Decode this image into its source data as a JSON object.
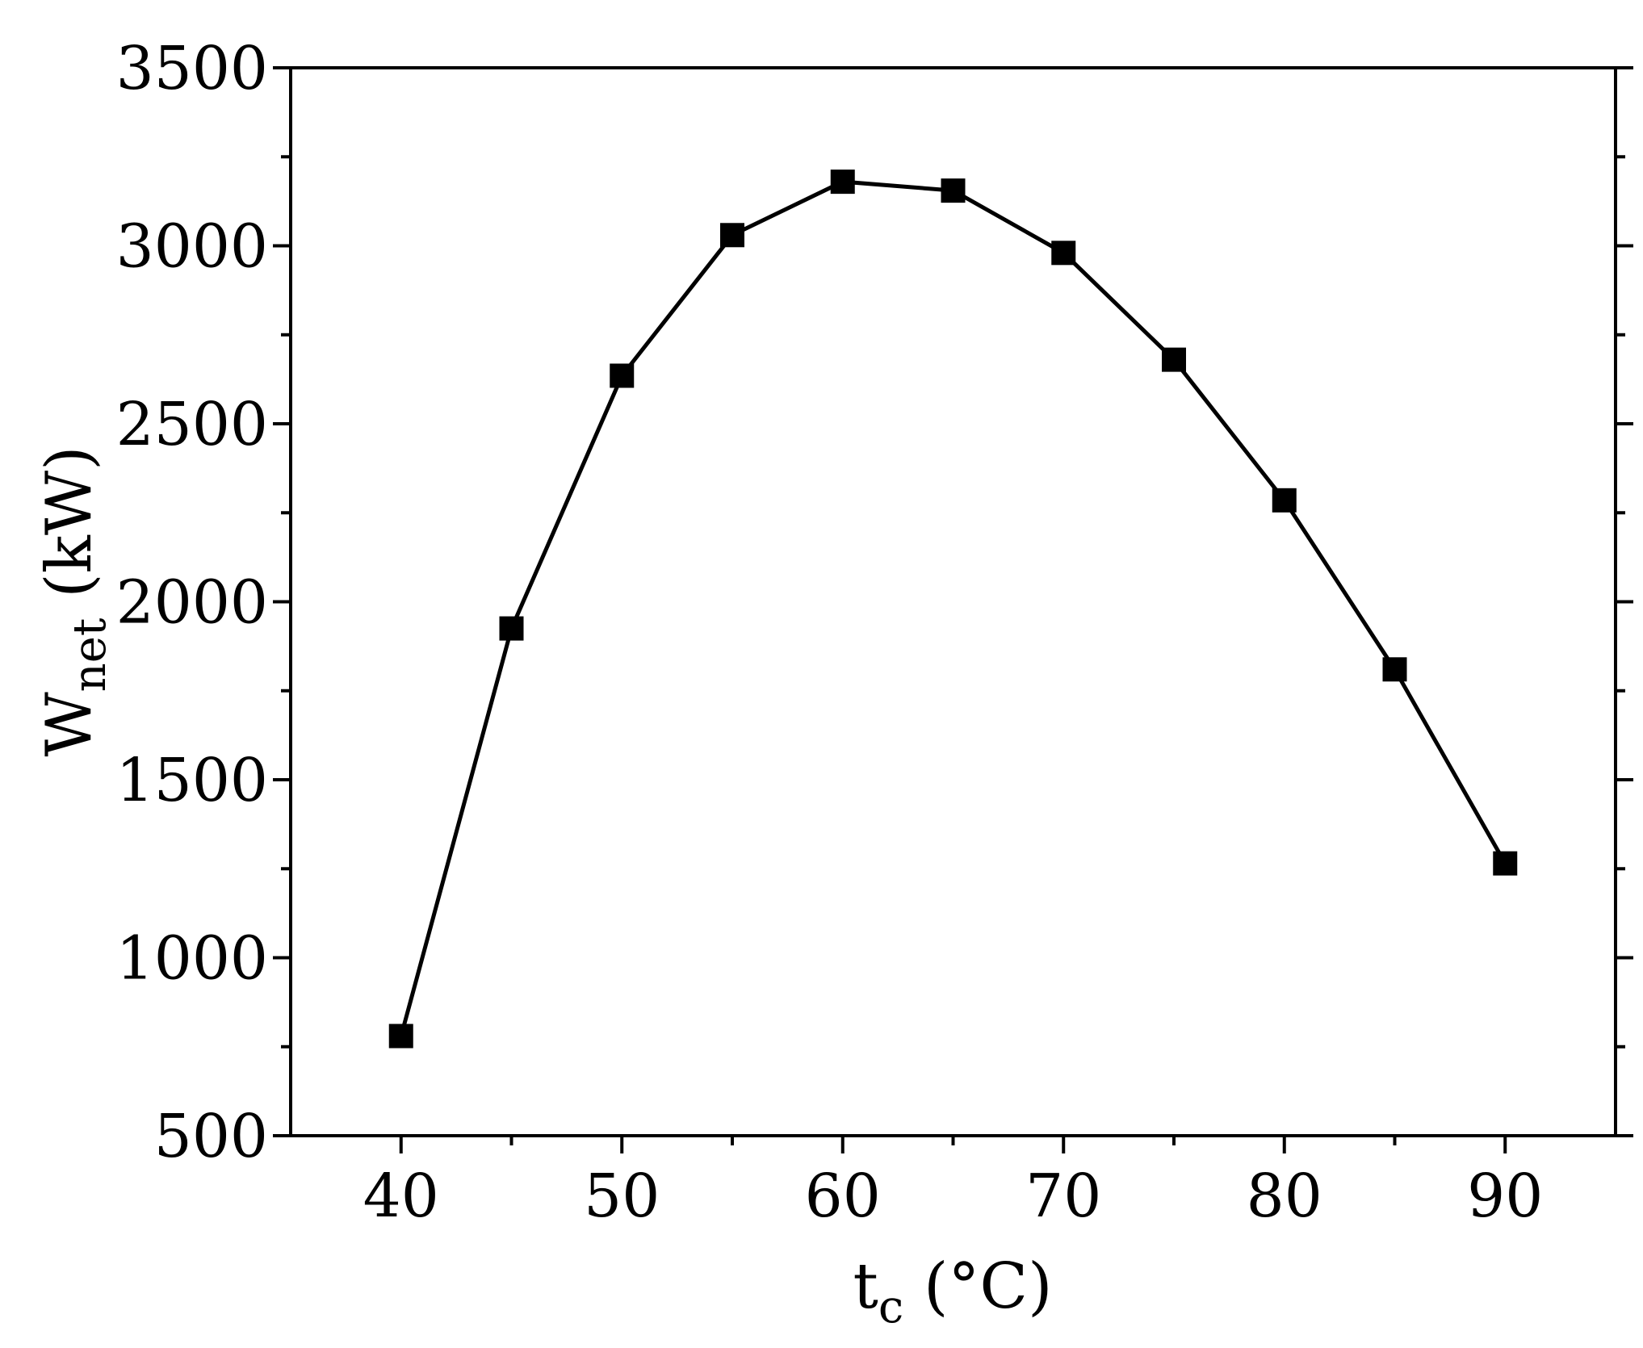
{
  "chart_data": {
    "type": "line",
    "xlabel": {
      "main": "t",
      "sub": "c",
      "unit": " (°C)"
    },
    "ylabel": {
      "main": "W",
      "sub": "net",
      "unit": " (kW)"
    },
    "xlim": [
      35,
      95
    ],
    "ylim": [
      500,
      3500
    ],
    "xticks": [
      40,
      50,
      60,
      70,
      80,
      90
    ],
    "xminor": [
      45,
      55,
      65,
      75,
      85
    ],
    "yticks": [
      500,
      1000,
      1500,
      2000,
      2500,
      3000,
      3500
    ],
    "yminor": [
      750,
      1250,
      1750,
      2250,
      2750,
      3250
    ],
    "grid": false,
    "marker": "square",
    "color": "#000000",
    "series": [
      {
        "x": [
          40,
          45,
          50,
          55,
          60,
          65,
          70,
          75,
          80,
          85,
          90
        ],
        "y": [
          780,
          1925,
          2635,
          3030,
          3180,
          3155,
          2980,
          2680,
          2285,
          1810,
          1265
        ]
      }
    ]
  }
}
